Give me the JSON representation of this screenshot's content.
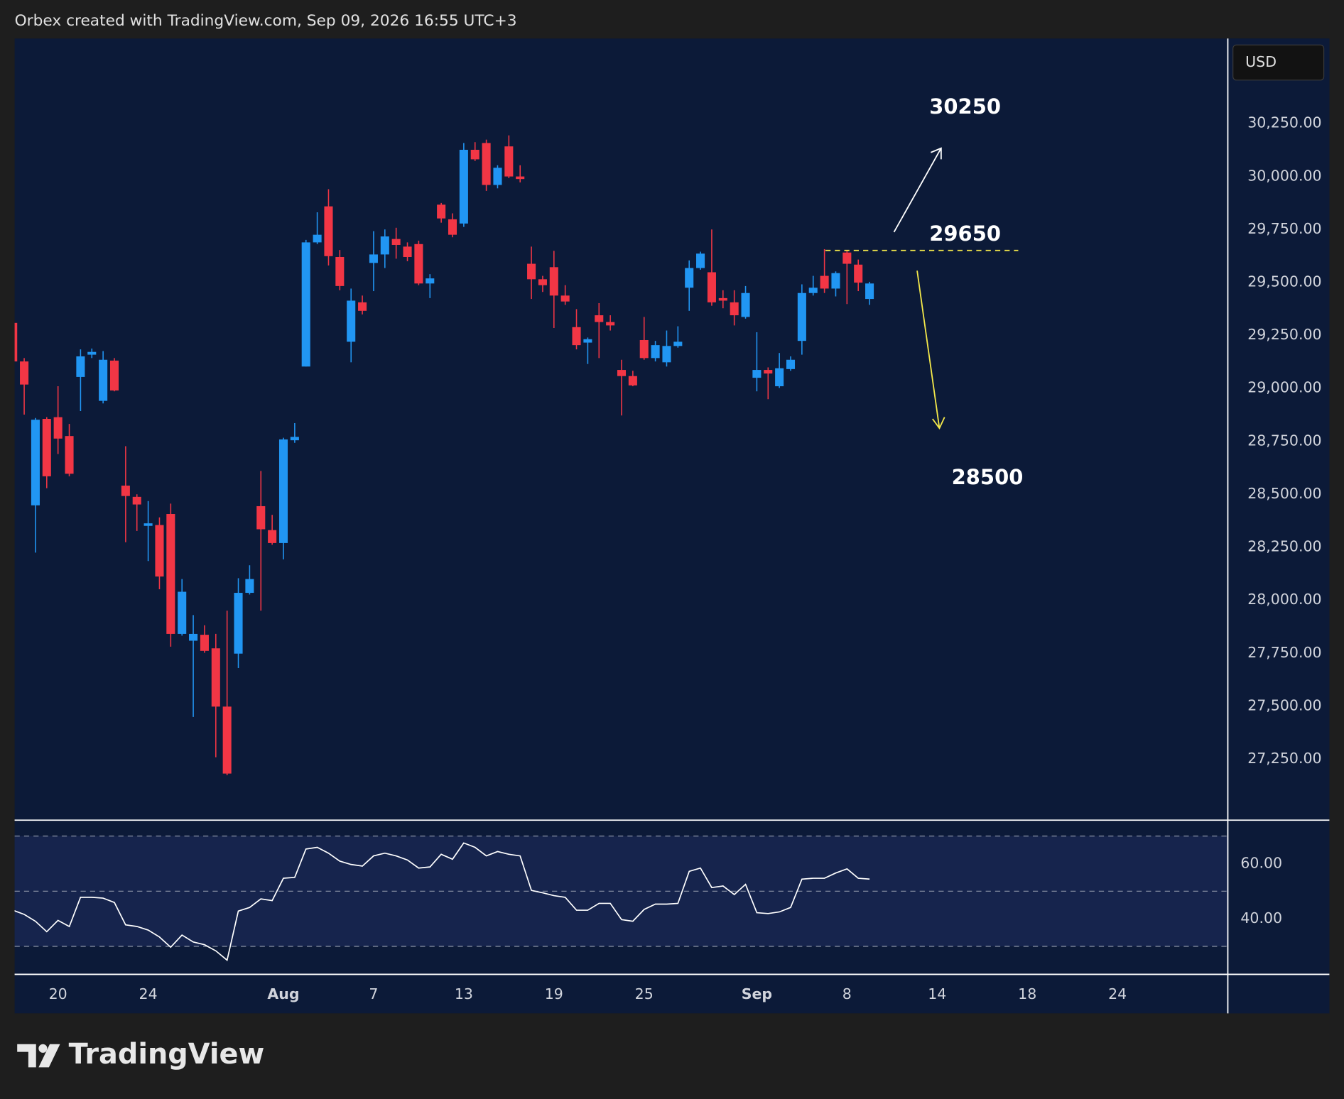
{
  "header": {
    "text": "Orbex created with TradingView.com, Sep 09, 2026 16:55 UTC+3"
  },
  "currency": "USD",
  "brand": "TradingView",
  "chart_data": [
    {
      "type": "candlestick",
      "up_color": "#2196f3",
      "down_color": "#f23645",
      "open": [
        29308,
        29126,
        28447,
        28855,
        28863,
        28774,
        29053,
        29158,
        28940,
        29130,
        28540,
        28487,
        28350,
        28354,
        28406,
        27840,
        27808,
        27836,
        27772,
        27497,
        27747,
        28034,
        28443,
        28330,
        28269,
        28754,
        29102,
        29688,
        29858,
        29619,
        29219,
        29405,
        29591,
        29631,
        29704,
        29668,
        29680,
        29494,
        29866,
        29797,
        29777,
        30125,
        30157,
        29959,
        30141,
        29999,
        29587,
        29514,
        29571,
        29437,
        29288,
        29215,
        29344,
        29312,
        29086,
        29057,
        29227,
        29142,
        29122,
        29199,
        29474,
        29567,
        29547,
        29425,
        29405,
        29336,
        29049,
        29086,
        29009,
        29090,
        29223,
        29449,
        29530,
        29470,
        29640,
        29583,
        29421
      ],
      "high": [
        29310,
        29142,
        28859,
        28863,
        29009,
        28831,
        29183,
        29187,
        29175,
        29142,
        28726,
        28499,
        28467,
        28390,
        28455,
        28099,
        27929,
        27881,
        27840,
        27950,
        28103,
        28164,
        28609,
        28402,
        28766,
        28835,
        29700,
        29830,
        29939,
        29652,
        29470,
        29437,
        29741,
        29749,
        29757,
        29688,
        29696,
        29538,
        29874,
        29825,
        30157,
        30161,
        30173,
        30052,
        30193,
        30052,
        29668,
        29530,
        29648,
        29486,
        29373,
        29239,
        29401,
        29344,
        29134,
        29082,
        29336,
        29223,
        29272,
        29292,
        29603,
        29644,
        29749,
        29462,
        29462,
        29482,
        29264,
        29098,
        29166,
        29150,
        29490,
        29530,
        29656,
        29551,
        29652,
        29607,
        29502
      ],
      "low": [
        29120,
        28875,
        28224,
        28528,
        28689,
        28584,
        28892,
        29142,
        28928,
        28985,
        28273,
        28326,
        28184,
        28051,
        27780,
        27832,
        27448,
        27751,
        27258,
        27173,
        27679,
        28026,
        27950,
        28261,
        28192,
        28742,
        29102,
        29680,
        29579,
        29462,
        29122,
        29348,
        29458,
        29567,
        29611,
        29599,
        29486,
        29425,
        29781,
        29712,
        29761,
        30072,
        29931,
        29943,
        29991,
        29971,
        29421,
        29454,
        29284,
        29393,
        29183,
        29114,
        29142,
        29272,
        28871,
        29009,
        29134,
        29126,
        29102,
        29191,
        29365,
        29559,
        29389,
        29377,
        29296,
        29328,
        28985,
        28948,
        29001,
        29082,
        29158,
        29437,
        29449,
        29433,
        29397,
        29458,
        29393
      ],
      "close": [
        29126,
        29017,
        28851,
        28584,
        28762,
        28596,
        29150,
        29171,
        29134,
        28989,
        28491,
        28451,
        28362,
        28111,
        27840,
        28039,
        27840,
        27760,
        27497,
        27181,
        28034,
        28099,
        28334,
        28269,
        28758,
        28770,
        29688,
        29724,
        29623,
        29482,
        29413,
        29365,
        29631,
        29716,
        29676,
        29619,
        29494,
        29518,
        29801,
        29724,
        30125,
        30080,
        29959,
        30040,
        29999,
        29987,
        29514,
        29486,
        29437,
        29409,
        29203,
        29231,
        29312,
        29296,
        29057,
        29013,
        29142,
        29203,
        29199,
        29219,
        29567,
        29635,
        29405,
        29413,
        29344,
        29449,
        29086,
        29069,
        29094,
        29134,
        29449,
        29474,
        29470,
        29543,
        29587,
        29498,
        29494
      ],
      "xlim": [
        0.15,
        107.75
      ],
      "xticks": [
        {
          "value": 4,
          "label": "20"
        },
        {
          "value": 12,
          "label": "24"
        },
        {
          "value": 24,
          "label": "Aug"
        },
        {
          "value": 32,
          "label": "7"
        },
        {
          "value": 40,
          "label": "13"
        },
        {
          "value": 48,
          "label": "19"
        },
        {
          "value": 56,
          "label": "25"
        },
        {
          "value": 66,
          "label": "Sep"
        },
        {
          "value": 74,
          "label": "8"
        },
        {
          "value": 82,
          "label": "14"
        },
        {
          "value": 90,
          "label": "18"
        },
        {
          "value": 98,
          "label": "24"
        }
      ],
      "ylim": [
        26963,
        30650
      ],
      "yticks": [
        {
          "value": 27250,
          "label": "27,250.00"
        },
        {
          "value": 27500,
          "label": "27,500.00"
        },
        {
          "value": 27750,
          "label": "27,750.00"
        },
        {
          "value": 28000,
          "label": "28,000.00"
        },
        {
          "value": 28250,
          "label": "28,250.00"
        },
        {
          "value": 28500,
          "label": "28,500.00"
        },
        {
          "value": 28750,
          "label": "28,750.00"
        },
        {
          "value": 29000,
          "label": "29,000.00"
        },
        {
          "value": 29250,
          "label": "29,250.00"
        },
        {
          "value": 29500,
          "label": "29,500.00"
        },
        {
          "value": 29750,
          "label": "29,750.00"
        },
        {
          "value": 30000,
          "label": "30,000.00"
        },
        {
          "value": 30250,
          "label": "30,250.00"
        }
      ],
      "annotations": [
        {
          "value": 30250,
          "color": "#ffffff"
        },
        {
          "value": 29650,
          "color": "#ffffff",
          "line_color": "#f5e94a"
        },
        {
          "value": 28500,
          "color": "#ffffff"
        }
      ]
    },
    {
      "type": "line",
      "color": "#ffffff",
      "values": [
        43.1,
        41.6,
        39.1,
        35.3,
        39.4,
        37.2,
        47.8,
        47.8,
        47.5,
        45.9,
        37.8,
        37.2,
        35.9,
        33.4,
        29.7,
        34.1,
        31.6,
        30.6,
        28.4,
        25.0,
        42.8,
        44.1,
        47.2,
        46.6,
        54.7,
        55.0,
        65.3,
        65.9,
        63.8,
        60.9,
        59.7,
        59.1,
        62.8,
        63.8,
        62.8,
        61.3,
        58.4,
        58.8,
        63.4,
        61.6,
        67.5,
        65.9,
        62.8,
        64.4,
        63.4,
        62.8,
        50.3,
        49.4,
        48.4,
        47.8,
        43.1,
        43.1,
        45.6,
        45.6,
        39.7,
        39.1,
        43.4,
        45.3,
        45.3,
        45.6,
        57.2,
        58.4,
        51.3,
        51.9,
        48.8,
        52.5,
        42.2,
        41.9,
        42.5,
        44.1,
        54.4,
        54.7,
        54.7,
        56.6,
        58.1,
        54.7,
        54.4
      ],
      "ylim": [
        20,
        75.6
      ],
      "yticks": [
        {
          "value": 60,
          "label": "60.00"
        },
        {
          "value": 40,
          "label": "40.00"
        }
      ],
      "levels": [
        70,
        50,
        30
      ],
      "band_color": "#16244d"
    }
  ]
}
